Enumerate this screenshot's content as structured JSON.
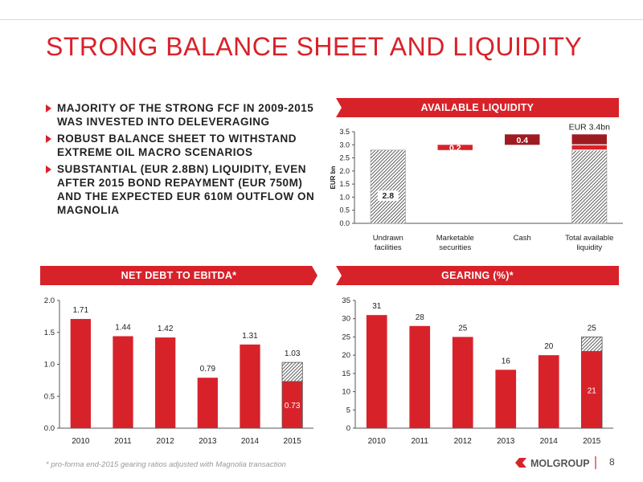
{
  "slide": {
    "title": "STRONG BALANCE SHEET AND LIQUIDITY",
    "bullets": [
      "MAJORITY OF THE STRONG FCF IN 2009-2015 WAS INVESTED INTO DELEVERAGING",
      "ROBUST BALANCE SHEET TO WITHSTAND EXTREME OIL MACRO SCENARIOS",
      "SUBSTANTIAL (EUR 2.8BN) LIQUIDITY, EVEN AFTER 2015 BOND REPAYMENT (EUR 750M) AND THE EXPECTED EUR 610M OUTFLOW ON MAGNOLIA"
    ],
    "footnote": "* pro-forma end-2015 gearing ratios adjusted with Magnolia transaction",
    "page_number": "8",
    "logo_text": "MOLGROUP"
  },
  "colors": {
    "accent": "#d8222a",
    "dark_red": "#9e1b22",
    "text": "#222222",
    "axis": "#555555"
  },
  "chart_data": [
    {
      "id": "liquidity",
      "type": "bar",
      "subtype": "waterfall",
      "header": "AVAILABLE LIQUIDITY",
      "ylabel": "EUR bn",
      "ylim": [
        0,
        3.5
      ],
      "yticks": [
        "0.0",
        "0.5",
        "1.0",
        "1.5",
        "2.0",
        "2.5",
        "3.0",
        "3.5"
      ],
      "categories": [
        "Undrawn facilities",
        "Marketable securities",
        "Cash",
        "Total available liquidity"
      ],
      "segments": [
        {
          "category": 0,
          "start": 0,
          "value": 2.8,
          "style": "hatched",
          "label": "2.8"
        },
        {
          "category": 1,
          "start": 2.8,
          "value": 0.2,
          "style": "red",
          "label": "0.2"
        },
        {
          "category": 2,
          "start": 3.0,
          "value": 0.4,
          "style": "darkred",
          "label": "0.4"
        },
        {
          "category": 3,
          "start": 0,
          "value": 2.8,
          "style": "hatched",
          "label": ""
        },
        {
          "category": 3,
          "start": 2.8,
          "value": 0.2,
          "style": "red",
          "label": ""
        },
        {
          "category": 3,
          "start": 3.0,
          "value": 0.4,
          "style": "darkred",
          "label": ""
        }
      ],
      "total_label": "EUR 3.4bn",
      "total_value": 3.4
    },
    {
      "id": "netdebt",
      "type": "bar",
      "header": "NET DEBT TO EBITDA*",
      "ylim": [
        0,
        2
      ],
      "yticks": [
        "0.0",
        "0.5",
        "1.0",
        "1.5",
        "2.0"
      ],
      "categories": [
        "2010",
        "2011",
        "2012",
        "2013",
        "2014",
        "2015"
      ],
      "values": [
        1.71,
        1.44,
        1.42,
        0.79,
        1.31,
        1.03
      ],
      "labels": [
        "1.71",
        "1.44",
        "1.42",
        "0.79",
        "1.31",
        "1.03"
      ],
      "proforma": {
        "index": 5,
        "value": 0.73,
        "label": "0.73"
      }
    },
    {
      "id": "gearing",
      "type": "bar",
      "header": "GEARING (%)*",
      "ylim": [
        0,
        35
      ],
      "yticks": [
        "0",
        "5",
        "10",
        "15",
        "20",
        "25",
        "30",
        "35"
      ],
      "categories": [
        "2010",
        "2011",
        "2012",
        "2013",
        "2014",
        "2015"
      ],
      "values": [
        31,
        28,
        25,
        16,
        20,
        25
      ],
      "labels": [
        "31",
        "28",
        "25",
        "16",
        "20",
        "25"
      ],
      "proforma": {
        "index": 5,
        "value": 21,
        "label": "21"
      }
    }
  ]
}
